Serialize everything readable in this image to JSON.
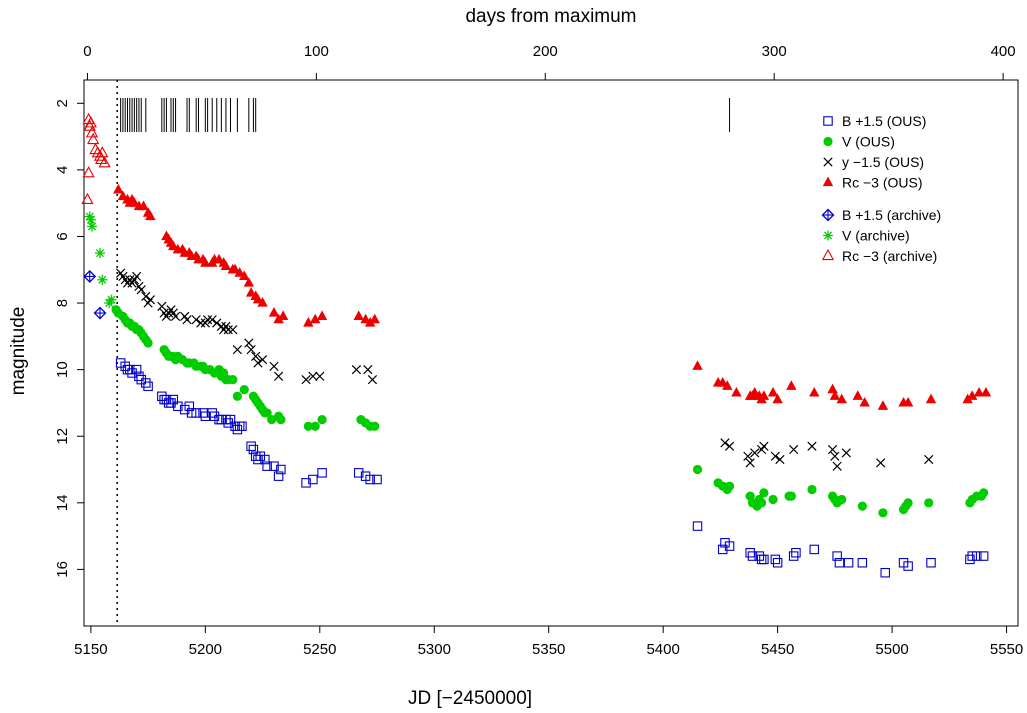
{
  "chart_data": {
    "type": "scatter",
    "title": "",
    "xlabel": "JD [−2450000]",
    "x2label": "days from maximum",
    "ylabel": "magnitude",
    "xlim": [
      5147,
      5555
    ],
    "x2lim": [
      -1.5,
      406.5
    ],
    "ylim": [
      17.7,
      1.3
    ],
    "y_inverted": true,
    "x_ticks": [
      5150,
      5200,
      5250,
      5300,
      5350,
      5400,
      5450,
      5500,
      5550
    ],
    "x2_ticks": [
      0,
      100,
      200,
      300,
      400
    ],
    "y_ticks": [
      2,
      4,
      6,
      8,
      10,
      12,
      14,
      16
    ],
    "maximum_jd": 5161.5,
    "legend_position": "top-right",
    "observation_marks_jd": [
      5163,
      5164,
      5165,
      5166,
      5167,
      5168,
      5169,
      5170,
      5171,
      5172,
      5174,
      5181,
      5182,
      5183,
      5185,
      5186,
      5187,
      5192,
      5193,
      5196,
      5197,
      5200,
      5201,
      5203,
      5205,
      5207,
      5209,
      5211,
      5214,
      5219,
      5221,
      5222,
      5429
    ],
    "series": [
      {
        "name": "B +1.5 (OUS)",
        "marker": "open-square",
        "color": "#0000cc",
        "x": [
          5163,
          5165,
          5166,
          5167,
          5168,
          5170,
          5171,
          5172,
          5174,
          5175,
          5181,
          5182,
          5183,
          5184,
          5185,
          5186,
          5188,
          5191,
          5193,
          5194,
          5196,
          5199,
          5200,
          5203,
          5204,
          5206,
          5207,
          5209,
          5210,
          5211,
          5213,
          5214,
          5215,
          5216,
          5220,
          5221,
          5222,
          5223,
          5224,
          5226,
          5227,
          5230,
          5232,
          5233,
          5244,
          5247,
          5251,
          5267,
          5270,
          5272,
          5275,
          5415,
          5426,
          5427,
          5429,
          5438,
          5439,
          5442,
          5443,
          5444,
          5449,
          5450,
          5457,
          5458,
          5466,
          5476,
          5477,
          5481,
          5487,
          5497,
          5505,
          5507,
          5517,
          5534,
          5535,
          5537,
          5540
        ],
        "y": [
          9.8,
          9.9,
          10.0,
          10.0,
          10.1,
          10.0,
          10.2,
          10.3,
          10.4,
          10.5,
          10.8,
          10.9,
          10.9,
          11.0,
          11.0,
          10.9,
          11.1,
          11.2,
          11.1,
          11.3,
          11.3,
          11.3,
          11.4,
          11.3,
          11.4,
          11.5,
          11.5,
          11.5,
          11.6,
          11.5,
          11.7,
          11.8,
          11.7,
          11.7,
          12.3,
          12.4,
          12.6,
          12.7,
          12.6,
          12.7,
          12.9,
          12.9,
          13.2,
          13.0,
          13.4,
          13.3,
          13.1,
          13.1,
          13.2,
          13.3,
          13.3,
          14.7,
          15.4,
          15.2,
          15.3,
          15.5,
          15.6,
          15.6,
          15.7,
          15.7,
          15.7,
          15.8,
          15.6,
          15.5,
          15.4,
          15.6,
          15.8,
          15.8,
          15.8,
          16.1,
          15.8,
          15.9,
          15.8,
          15.7,
          15.6,
          15.6,
          15.6
        ]
      },
      {
        "name": "V (OUS)",
        "marker": "filled-circle",
        "color": "#00cc00",
        "x": [
          5161,
          5162,
          5164,
          5165,
          5166,
          5167,
          5168,
          5169,
          5170,
          5171,
          5172,
          5173,
          5174,
          5175,
          5182,
          5183,
          5184,
          5185,
          5186,
          5187,
          5188,
          5190,
          5192,
          5193,
          5195,
          5196,
          5198,
          5199,
          5200,
          5202,
          5204,
          5206,
          5207,
          5208,
          5209,
          5210,
          5212,
          5214,
          5217,
          5221,
          5222,
          5223,
          5224,
          5225,
          5226,
          5227,
          5229,
          5232,
          5233,
          5245,
          5248,
          5251,
          5268,
          5270,
          5272,
          5274,
          5415,
          5424,
          5426,
          5428,
          5429,
          5438,
          5439,
          5441,
          5442,
          5443,
          5444,
          5448,
          5455,
          5456,
          5465,
          5474,
          5475,
          5476,
          5478,
          5487,
          5496,
          5505,
          5506,
          5507,
          5516,
          5534,
          5535,
          5537,
          5539,
          5540
        ],
        "y": [
          8.2,
          8.3,
          8.4,
          8.5,
          8.6,
          8.6,
          8.7,
          8.7,
          8.8,
          8.8,
          8.9,
          9.0,
          9.1,
          9.2,
          9.4,
          9.5,
          9.6,
          9.6,
          9.6,
          9.7,
          9.6,
          9.7,
          9.8,
          9.8,
          9.8,
          9.9,
          9.9,
          9.9,
          10.0,
          10.0,
          10.1,
          10.0,
          10.2,
          10.1,
          10.3,
          10.3,
          10.3,
          10.8,
          10.6,
          10.8,
          10.9,
          11.0,
          11.1,
          11.2,
          11.3,
          11.3,
          11.5,
          11.4,
          11.5,
          11.7,
          11.7,
          11.5,
          11.5,
          11.6,
          11.7,
          11.7,
          13.0,
          13.4,
          13.5,
          13.6,
          13.5,
          13.8,
          14.0,
          14.1,
          13.9,
          14.0,
          13.7,
          13.9,
          13.8,
          13.8,
          13.6,
          13.8,
          13.9,
          14.0,
          13.9,
          14.1,
          14.3,
          14.2,
          14.1,
          14.0,
          14.0,
          14.0,
          13.9,
          13.8,
          13.8,
          13.7
        ]
      },
      {
        "name": "y −1.5 (OUS)",
        "marker": "cross",
        "color": "#000000",
        "x": [
          5163,
          5164,
          5165,
          5166,
          5167,
          5168,
          5169,
          5170,
          5171,
          5172,
          5174,
          5175,
          5176,
          5181,
          5182,
          5183,
          5184,
          5185,
          5186,
          5187,
          5191,
          5192,
          5196,
          5198,
          5200,
          5201,
          5203,
          5205,
          5207,
          5208,
          5209,
          5210,
          5212,
          5214,
          5219,
          5220,
          5222,
          5223,
          5225,
          5230,
          5232,
          5244,
          5247,
          5250,
          5266,
          5271,
          5273,
          5427,
          5429,
          5437,
          5438,
          5440,
          5443,
          5444,
          5449,
          5451,
          5457,
          5465,
          5474,
          5475,
          5476,
          5480,
          5495,
          5516
        ],
        "y": [
          7.1,
          7.2,
          7.3,
          7.4,
          7.3,
          7.4,
          7.3,
          7.2,
          7.5,
          7.6,
          7.8,
          8.0,
          7.9,
          8.1,
          8.3,
          8.4,
          8.3,
          8.2,
          8.3,
          8.4,
          8.4,
          8.5,
          8.5,
          8.6,
          8.6,
          8.5,
          8.5,
          8.6,
          8.7,
          8.8,
          8.7,
          8.8,
          8.8,
          9.4,
          9.2,
          9.4,
          9.6,
          9.8,
          9.7,
          9.9,
          10.2,
          10.3,
          10.2,
          10.2,
          10.0,
          10.0,
          10.3,
          12.2,
          12.3,
          12.6,
          12.8,
          12.5,
          12.4,
          12.3,
          12.6,
          12.7,
          12.4,
          12.3,
          12.4,
          12.6,
          12.9,
          12.5,
          12.8,
          12.7
        ]
      },
      {
        "name": "Rc −3 (OUS)",
        "marker": "filled-triangle",
        "color": "#ee0000",
        "x": [
          5162,
          5164,
          5166,
          5167,
          5168,
          5169,
          5171,
          5173,
          5175,
          5176,
          5183,
          5184,
          5185,
          5186,
          5188,
          5190,
          5191,
          5193,
          5194,
          5196,
          5197,
          5199,
          5200,
          5203,
          5204,
          5206,
          5208,
          5209,
          5212,
          5213,
          5215,
          5217,
          5219,
          5220,
          5222,
          5223,
          5225,
          5230,
          5232,
          5234,
          5245,
          5248,
          5251,
          5267,
          5270,
          5272,
          5274,
          5415,
          5424,
          5426,
          5428,
          5432,
          5438,
          5439,
          5440,
          5442,
          5443,
          5444,
          5448,
          5450,
          5456,
          5466,
          5474,
          5475,
          5478,
          5485,
          5488,
          5496,
          5505,
          5507,
          5517,
          5533,
          5535,
          5538,
          5541
        ],
        "y": [
          4.6,
          4.8,
          4.9,
          5.0,
          4.9,
          5.0,
          5.1,
          5.1,
          5.3,
          5.4,
          6.0,
          6.1,
          6.2,
          6.3,
          6.4,
          6.4,
          6.5,
          6.5,
          6.6,
          6.6,
          6.7,
          6.7,
          6.8,
          6.8,
          6.7,
          6.7,
          6.8,
          6.9,
          7.0,
          7.0,
          7.1,
          7.2,
          7.4,
          7.7,
          7.8,
          7.9,
          8.0,
          8.3,
          8.5,
          8.4,
          8.6,
          8.5,
          8.4,
          8.4,
          8.5,
          8.6,
          8.5,
          9.9,
          10.4,
          10.4,
          10.5,
          10.7,
          10.8,
          10.8,
          10.7,
          10.8,
          10.9,
          10.8,
          10.7,
          10.9,
          10.5,
          10.7,
          10.6,
          10.8,
          10.9,
          10.8,
          11.0,
          11.1,
          11.0,
          11.0,
          10.9,
          10.9,
          10.8,
          10.7,
          10.7
        ]
      },
      {
        "name": "B +1.5 (archive)",
        "marker": "diamond-plus",
        "color": "#0000cc",
        "x": [
          5149.5,
          5154
        ],
        "y": [
          7.2,
          8.3
        ]
      },
      {
        "name": "V (archive)",
        "marker": "asterisk",
        "color": "#00cc00",
        "x": [
          5149.5,
          5150,
          5150.5,
          5154,
          5155,
          5158,
          5159
        ],
        "y": [
          5.4,
          5.5,
          5.7,
          6.5,
          7.3,
          8.0,
          7.9
        ]
      },
      {
        "name": "Rc −3 (archive)",
        "marker": "open-triangle",
        "color": "#ee0000",
        "x": [
          5149,
          5149.5,
          5150,
          5150.5,
          5151,
          5152,
          5153,
          5154,
          5154.5,
          5155,
          5156,
          5149,
          5148.5
        ],
        "y": [
          2.5,
          2.7,
          2.6,
          2.9,
          3.1,
          3.4,
          3.5,
          3.6,
          3.7,
          3.5,
          3.8,
          4.1,
          4.9
        ]
      }
    ]
  }
}
